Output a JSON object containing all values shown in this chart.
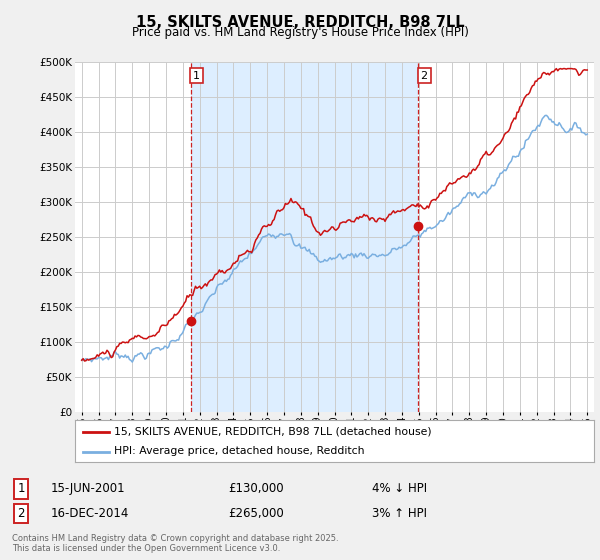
{
  "title_line1": "15, SKILTS AVENUE, REDDITCH, B98 7LL",
  "title_line2": "Price paid vs. HM Land Registry's House Price Index (HPI)",
  "ylim": [
    0,
    500000
  ],
  "yticks": [
    0,
    50000,
    100000,
    150000,
    200000,
    250000,
    300000,
    350000,
    400000,
    450000,
    500000
  ],
  "ytick_labels": [
    "£0",
    "£50K",
    "£100K",
    "£150K",
    "£200K",
    "£250K",
    "£300K",
    "£350K",
    "£400K",
    "£450K",
    "£500K"
  ],
  "xtick_years": [
    1995,
    1996,
    1997,
    1998,
    1999,
    2000,
    2001,
    2002,
    2003,
    2004,
    2005,
    2006,
    2007,
    2008,
    2009,
    2010,
    2011,
    2012,
    2013,
    2014,
    2015,
    2016,
    2017,
    2018,
    2019,
    2020,
    2021,
    2022,
    2023,
    2024,
    2025
  ],
  "vline1_year": 2001.46,
  "vline2_year": 2014.96,
  "vline_color": "#cc2222",
  "sale1_label": "1",
  "sale1_date": "15-JUN-2001",
  "sale1_price": "£130,000",
  "sale1_hpi": "4% ↓ HPI",
  "sale1_value": 130000,
  "sale2_label": "2",
  "sale2_date": "16-DEC-2014",
  "sale2_price": "£265,000",
  "sale2_hpi": "3% ↑ HPI",
  "sale2_value": 265000,
  "red_line_color": "#cc1111",
  "blue_line_color": "#7aafe0",
  "shade_color": "#ddeeff",
  "legend_label_red": "15, SKILTS AVENUE, REDDITCH, B98 7LL (detached house)",
  "legend_label_blue": "HPI: Average price, detached house, Redditch",
  "background_color": "#f0f0f0",
  "plot_bg_color": "#ffffff",
  "grid_color": "#cccccc",
  "copyright_text": "Contains HM Land Registry data © Crown copyright and database right 2025.\nThis data is licensed under the Open Government Licence v3.0."
}
